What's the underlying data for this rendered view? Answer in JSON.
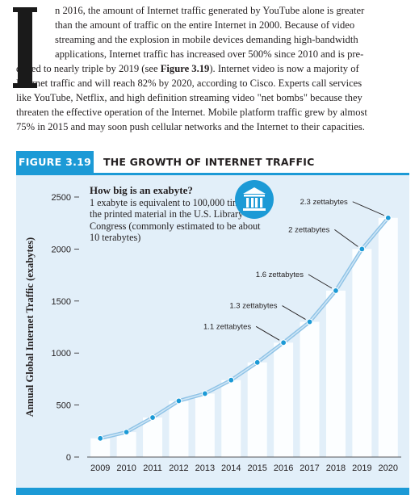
{
  "intro": {
    "lines": [
      "n 2016, the amount of Internet traffic generated by YouTube alone is greater",
      "than the amount of traffic on the entire Internet in 2000. Because of video",
      "streaming and the explosion in mobile devices demanding high-bandwidth",
      "applications, Internet traffic has increased over 500% since 2010 and is pre-"
    ],
    "line5_before": "dicted to nearly triple by 2019 (see ",
    "figure_ref": "Figure 3.19",
    "line5_after": "). Internet video is now a majority of",
    "lines_after": [
      "Internet traffic and will reach 82% by 2020, according to Cisco. Experts call services",
      "like YouTube, Netflix, and high definition streaming video \"net bombs\" because they",
      "threaten the effective operation of the Internet. Mobile platform traffic grew by almost",
      "75% in 2015 and may soon push cellular networks and the Internet to their capacities."
    ]
  },
  "figure": {
    "number": "FIGURE 3.19",
    "title": "THE GROWTH OF INTERNET TRAFFIC",
    "info_title": "How big is an exabyte?",
    "info_body": "1 exabyte is equivalent to 100,000 times all the printed material in the U.S. Library of Congress (commonly estimated to be about 10 terabytes)",
    "icon": "bank-building-icon"
  },
  "colors": {
    "accent": "#1c9ad6",
    "panel": "#e2eff9",
    "bar": "#ffffff",
    "line": "#8fc3e6"
  },
  "chart_data": {
    "type": "bar",
    "overlay": "line",
    "categories": [
      "2009",
      "2010",
      "2011",
      "2012",
      "2013",
      "2014",
      "2015",
      "2016",
      "2017",
      "2018",
      "2019",
      "2020"
    ],
    "values": [
      180,
      240,
      380,
      540,
      610,
      740,
      910,
      1100,
      1300,
      1600,
      2000,
      2300
    ],
    "ylabel": "Annual Global Internet Traffic (exabytes)",
    "xlabel": "",
    "ylim": [
      0,
      2500
    ],
    "yticks": [
      0,
      500,
      1000,
      1500,
      2000,
      2500
    ],
    "grid": false,
    "annotations": [
      {
        "label": "1.1 zettabytes",
        "index": 7
      },
      {
        "label": "1.3 zettabytes",
        "index": 8
      },
      {
        "label": "1.6 zettabytes",
        "index": 9
      },
      {
        "label": "2 zettabytes",
        "index": 10
      },
      {
        "label": "2.3 zettabytes",
        "index": 11
      }
    ]
  }
}
